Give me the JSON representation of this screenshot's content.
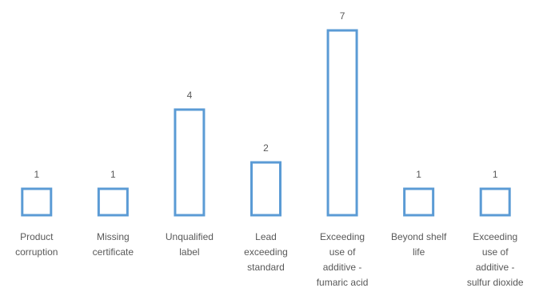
{
  "chart_data": {
    "type": "bar",
    "title": "",
    "xlabel": "",
    "ylabel": "",
    "categories": [
      [
        "Product",
        "corruption"
      ],
      [
        "Missing",
        "certificate"
      ],
      [
        "Unqualified",
        "label"
      ],
      [
        "Lead",
        "exceeding",
        "standard"
      ],
      [
        "Exceeding",
        "use of",
        "additive -",
        "fumaric acid"
      ],
      [
        "Beyond shelf",
        "life"
      ],
      [
        "Exceeding",
        "use of",
        "additive -",
        "sulfur dioxide"
      ]
    ],
    "values": [
      1,
      1,
      4,
      2,
      7,
      1,
      1
    ],
    "ylim": [
      0,
      7
    ],
    "grid": false,
    "legend": "none",
    "colors": {
      "bar_stroke": "#5b9bd5",
      "bar_fill": "#ffffff",
      "text": "#595959",
      "background": "#ffffff"
    }
  }
}
